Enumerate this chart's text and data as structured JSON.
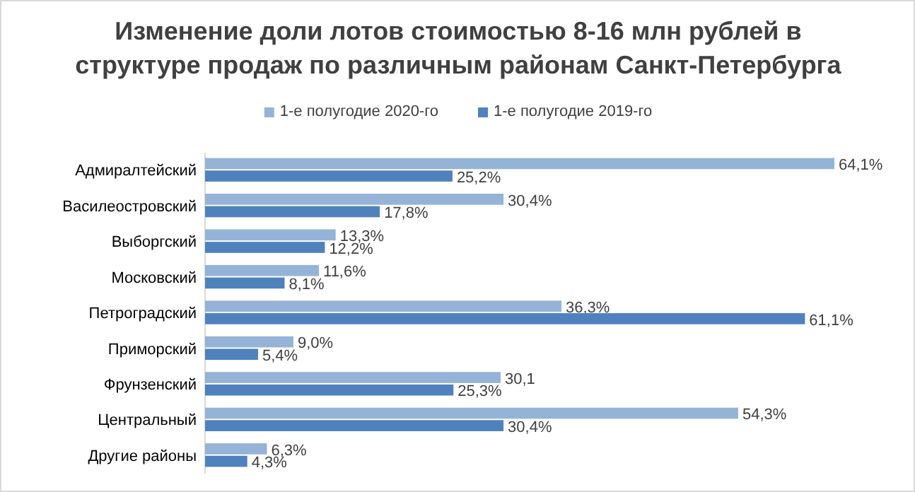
{
  "chart_data": {
    "type": "bar",
    "orientation": "horizontal",
    "title": "Изменение доли лотов стоимостью 8-16 млн рублей в структуре продаж по различным районам Санкт-Петербурга",
    "categories": [
      "Адмиралтейский",
      "Василеостровский",
      "Выборгский",
      "Московский",
      "Петроградский",
      "Приморский",
      "Фрунзенский",
      "Центральный",
      "Другие районы"
    ],
    "series": [
      {
        "name": "1-е полугодие 2020-го",
        "color": "#95b3d7",
        "values": [
          64.1,
          30.4,
          13.3,
          11.6,
          36.3,
          9.0,
          30.1,
          54.3,
          6.3
        ],
        "value_labels": [
          "64,1%",
          "30,4%",
          "13,3%",
          "11,6%",
          "36,3%",
          "9,0%",
          "30,1",
          "54,3%",
          "6,3%"
        ]
      },
      {
        "name": "1-е полугодие 2019-го",
        "color": "#4f81bd",
        "values": [
          25.2,
          17.8,
          12.2,
          8.1,
          61.1,
          5.4,
          25.3,
          30.4,
          4.3
        ],
        "value_labels": [
          "25,2%",
          "17,8%",
          "12,2%",
          "8,1%",
          "61,1%",
          "5,4%",
          "25,3%",
          "30,4%",
          "4,3%"
        ]
      }
    ],
    "legend": "top",
    "grid": false
  }
}
